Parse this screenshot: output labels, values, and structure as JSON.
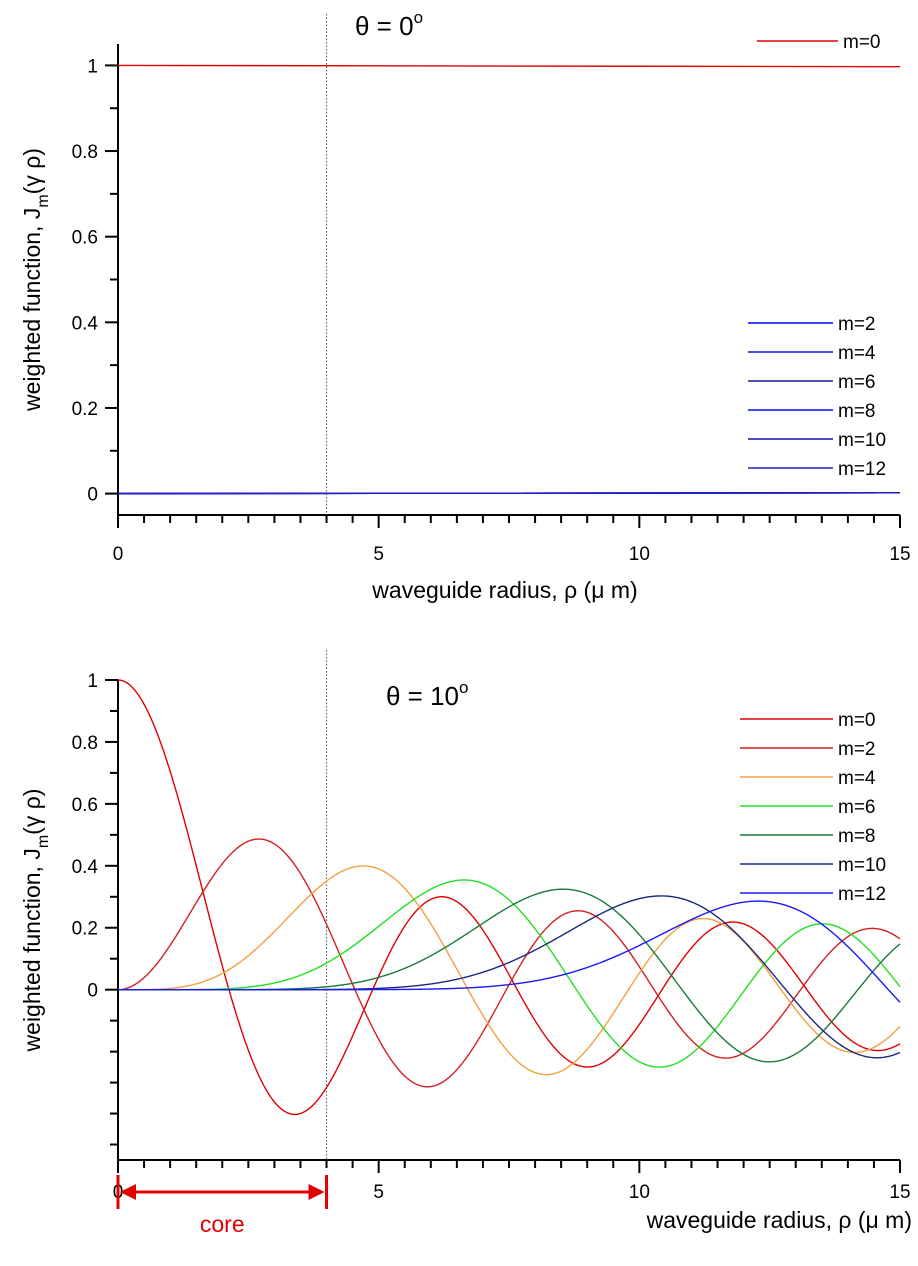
{
  "chart_data": [
    {
      "type": "line",
      "title_base": "θ = 0",
      "title_sup": "o",
      "xlabel": "waveguide radius, ρ (μ m)",
      "ylabel_main": "weighted function, J",
      "ylabel_sub": "m",
      "ylabel_end": "(γ ρ)",
      "xlim": [
        0,
        15
      ],
      "ylim": [
        -0.05,
        1.05
      ],
      "xticks": [
        0,
        5,
        10,
        15
      ],
      "xtick_labels": [
        "0",
        "5",
        "10",
        "15"
      ],
      "yticks": [
        0,
        0.2,
        0.4,
        0.6,
        0.8,
        1
      ],
      "ytick_labels": [
        "0",
        "0.2",
        "0.4",
        "0.6",
        "0.8",
        "1"
      ],
      "core_boundary_x": 4,
      "series": [
        {
          "name": "m=0",
          "m": 0,
          "color": "#e00000",
          "x": [
            0,
            15
          ],
          "y": [
            1.0,
            0.997
          ]
        },
        {
          "name": "m=2",
          "m": 2,
          "color": "#0000ff",
          "x": [
            0,
            15
          ],
          "y": [
            0,
            0.002
          ]
        },
        {
          "name": "m=4",
          "m": 4,
          "color": "#1010e0",
          "x": [
            0,
            15
          ],
          "y": [
            0,
            0.002
          ]
        },
        {
          "name": "m=6",
          "m": 6,
          "color": "#1a1a90",
          "x": [
            0,
            15
          ],
          "y": [
            0,
            0.002
          ]
        },
        {
          "name": "m=8",
          "m": 8,
          "color": "#0010ff",
          "x": [
            0,
            15
          ],
          "y": [
            0,
            0.002
          ]
        },
        {
          "name": "m=10",
          "m": 10,
          "color": "#1515b0",
          "x": [
            0,
            15
          ],
          "y": [
            0,
            0.002
          ]
        },
        {
          "name": "m=12",
          "m": 12,
          "color": "#2020c0",
          "x": [
            0,
            15
          ],
          "y": [
            0,
            0.002
          ]
        }
      ]
    },
    {
      "type": "line",
      "title_base": "θ = 10",
      "title_sup": "o",
      "xlabel": "waveguide radius, ρ (μ m)",
      "ylabel_main": "weighted function, J",
      "ylabel_sub": "m",
      "ylabel_end": "(γ ρ)",
      "xlim": [
        0,
        15
      ],
      "ylim": [
        -0.55,
        1.0
      ],
      "xticks": [
        0,
        5,
        10,
        15
      ],
      "xtick_labels": [
        "0",
        "5",
        "10",
        "15"
      ],
      "yticks": [
        0,
        0.2,
        0.4,
        0.6,
        0.8,
        1
      ],
      "ytick_labels": [
        "0",
        "0.2",
        "0.4",
        "0.6",
        "0.8",
        "1"
      ],
      "core_boundary_x": 4,
      "bessel_gamma": 1.13,
      "core_label": "core",
      "core_range": [
        0,
        4
      ],
      "series": [
        {
          "name": "m=0",
          "m": 0,
          "color": "#e00000"
        },
        {
          "name": "m=2",
          "m": 2,
          "color": "#d42020"
        },
        {
          "name": "m=4",
          "m": 4,
          "color": "#f0a040"
        },
        {
          "name": "m=6",
          "m": 6,
          "color": "#22e022"
        },
        {
          "name": "m=8",
          "m": 8,
          "color": "#1a7a3a"
        },
        {
          "name": "m=10",
          "m": 10,
          "color": "#1a2a80"
        },
        {
          "name": "m=12",
          "m": 12,
          "color": "#1a1aff"
        }
      ]
    }
  ]
}
